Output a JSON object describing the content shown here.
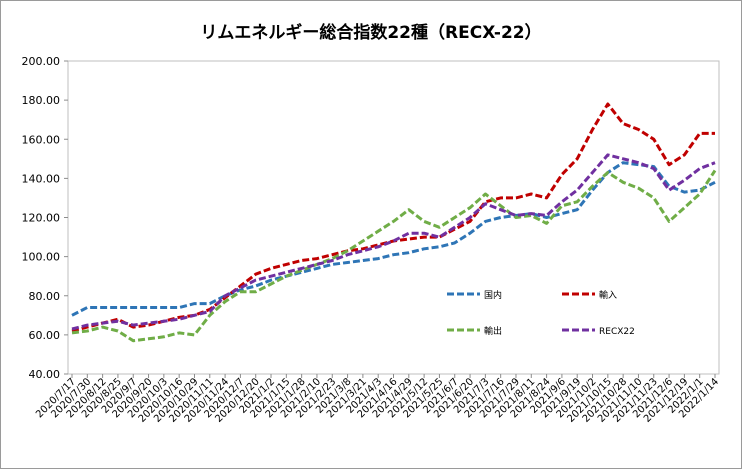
{
  "chart_data": {
    "type": "line",
    "title": "リムエネルギー総合指数22種（RECX-22）",
    "xlabel": "",
    "ylabel": "",
    "ylim": [
      40,
      200
    ],
    "yticks": [
      "40.00",
      "60.00",
      "80.00",
      "100.00",
      "120.00",
      "140.00",
      "160.00",
      "180.00",
      "200.00"
    ],
    "grid": "none",
    "legend_position": "lower-right inside plot",
    "categories": [
      "2020/7/17",
      "2020/7/30",
      "2020/8/12",
      "2020/8/25",
      "2020/9/7",
      "2020/9/20",
      "2020/10/3",
      "2020/10/16",
      "2020/10/29",
      "2020/11/11",
      "2020/11/24",
      "2020/12/7",
      "2020/12/20",
      "2021/1/2",
      "2021/1/15",
      "2021/1/28",
      "2021/2/10",
      "2021/2/23",
      "2021/3/8",
      "2021/3/21",
      "2021/4/3",
      "2021/4/16",
      "2021/4/29",
      "2021/5/12",
      "2021/5/25",
      "2021/6/7",
      "2021/6/20",
      "2021/7/3",
      "2021/7/16",
      "2021/7/29",
      "2021/8/11",
      "2021/8/24",
      "2021/9/6",
      "2021/9/19",
      "2021/10/2",
      "2021/10/15",
      "2021/10/28",
      "2021/11/10",
      "2021/11/23",
      "2021/12/6",
      "2021/12/19",
      "2022/1/1",
      "2022/1/14"
    ],
    "series": [
      {
        "name": "国内",
        "color": "#2e75b6",
        "values": [
          70,
          74,
          74,
          74,
          74,
          74,
          74,
          74,
          76,
          76,
          80,
          83,
          85,
          88,
          90,
          92,
          94,
          96,
          97,
          98,
          99,
          101,
          102,
          104,
          105,
          107,
          112,
          118,
          120,
          121,
          122,
          120,
          122,
          124,
          134,
          143,
          148,
          147,
          146,
          136,
          133,
          134,
          138
        ]
      },
      {
        "name": "輸入",
        "color": "#c00000",
        "values": [
          62,
          64,
          66,
          68,
          64,
          65,
          67,
          69,
          70,
          73,
          79,
          85,
          91,
          94,
          96,
          98,
          99,
          101,
          103,
          104,
          106,
          108,
          109,
          110,
          110,
          114,
          118,
          128,
          130,
          130,
          132,
          130,
          142,
          150,
          165,
          178,
          168,
          165,
          160,
          147,
          152,
          163,
          163
        ]
      },
      {
        "name": "輸出",
        "color": "#70ad47",
        "values": [
          61,
          62,
          64,
          62,
          57,
          58,
          59,
          61,
          60,
          70,
          77,
          82,
          82,
          86,
          90,
          93,
          96,
          99,
          103,
          108,
          113,
          118,
          124,
          118,
          115,
          120,
          125,
          132,
          126,
          120,
          121,
          117,
          126,
          128,
          136,
          143,
          138,
          135,
          130,
          118,
          125,
          132,
          144
        ]
      },
      {
        "name": "RECX22",
        "color": "#7030a0",
        "values": [
          63,
          65,
          66,
          67,
          65,
          66,
          67,
          68,
          70,
          72,
          80,
          84,
          88,
          90,
          92,
          94,
          96,
          98,
          101,
          103,
          105,
          108,
          112,
          112,
          110,
          115,
          120,
          127,
          124,
          121,
          122,
          121,
          128,
          134,
          143,
          152,
          150,
          148,
          145,
          134,
          139,
          145,
          148
        ]
      }
    ]
  }
}
